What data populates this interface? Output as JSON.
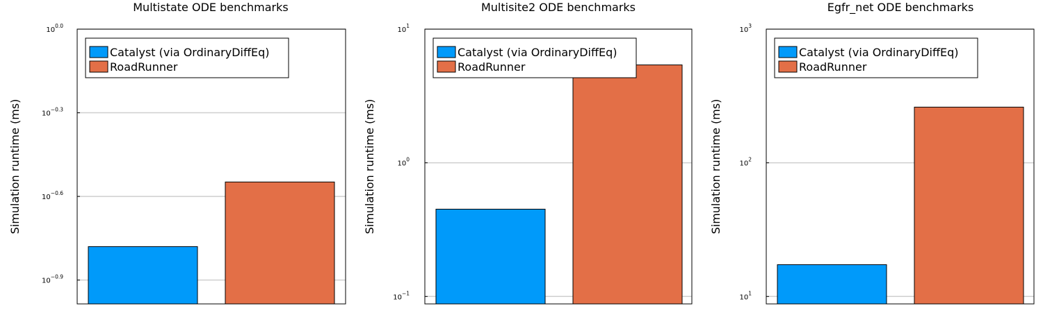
{
  "chart_data": [
    {
      "type": "bar",
      "title": "Multistate ODE benchmarks",
      "ylabel": "Simulation runtime (ms)",
      "xlabel": "",
      "yscale": "log10",
      "ylim": [
        0.1034,
        1.0
      ],
      "yticks": [
        {
          "value": 1.0,
          "base": "10",
          "exp": "0.0"
        },
        {
          "value": 0.5012,
          "base": "10",
          "exp": "−0.3"
        },
        {
          "value": 0.2512,
          "base": "10",
          "exp": "−0.6"
        },
        {
          "value": 0.1259,
          "base": "10",
          "exp": "−0.9"
        }
      ],
      "grid": true,
      "legend_position": "top-left",
      "series": [
        {
          "name": "Catalyst (via OrdinaryDiffEq)",
          "value": 0.166,
          "color": "#009AFA"
        },
        {
          "name": "RoadRunner",
          "value": 0.283,
          "color": "#E36F47"
        }
      ]
    },
    {
      "type": "bar",
      "title": "Multisite2 ODE benchmarks",
      "ylabel": "Simulation runtime (ms)",
      "xlabel": "",
      "yscale": "log10",
      "ylim": [
        0.088,
        10.0
      ],
      "yticks": [
        {
          "value": 10.0,
          "base": "10",
          "exp": "1"
        },
        {
          "value": 1.0,
          "base": "10",
          "exp": "0"
        },
        {
          "value": 0.1,
          "base": "10",
          "exp": "−1"
        }
      ],
      "grid": true,
      "legend_position": "top-left",
      "series": [
        {
          "name": "Catalyst (via OrdinaryDiffEq)",
          "value": 0.45,
          "color": "#009AFA"
        },
        {
          "name": "RoadRunner",
          "value": 5.4,
          "color": "#E36F47"
        }
      ]
    },
    {
      "type": "bar",
      "title": "Egfr_net ODE benchmarks",
      "ylabel": "Simulation runtime (ms)",
      "xlabel": "",
      "yscale": "log10",
      "ylim": [
        8.8,
        1000.0
      ],
      "yticks": [
        {
          "value": 1000.0,
          "base": "10",
          "exp": "3"
        },
        {
          "value": 100.0,
          "base": "10",
          "exp": "2"
        },
        {
          "value": 10.0,
          "base": "10",
          "exp": "1"
        }
      ],
      "grid": true,
      "legend_position": "top-left",
      "series": [
        {
          "name": "Catalyst (via OrdinaryDiffEq)",
          "value": 17.3,
          "color": "#009AFA"
        },
        {
          "name": "RoadRunner",
          "value": 261.0,
          "color": "#E36F47"
        }
      ]
    }
  ]
}
